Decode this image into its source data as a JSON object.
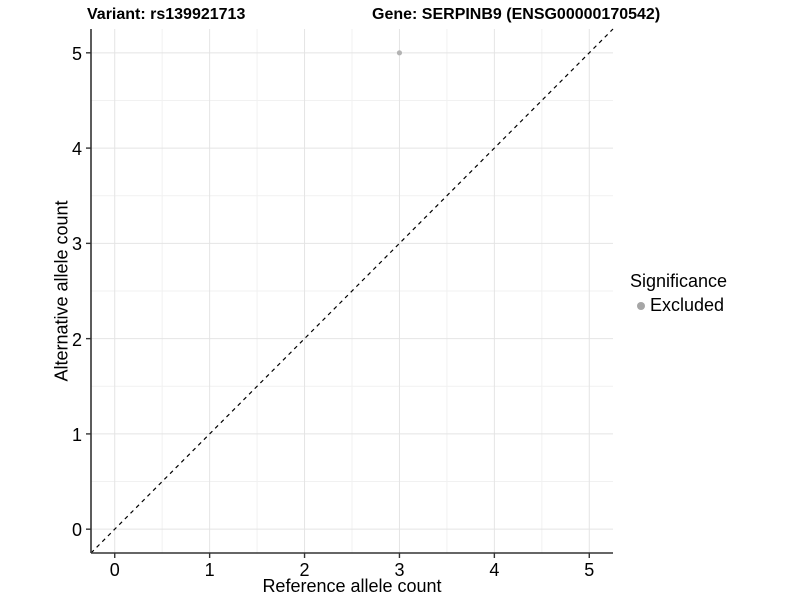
{
  "header": {
    "left_title": "Variant: rs139921713",
    "right_title": "Gene: SERPINB9 (ENSG00000170542)"
  },
  "chart_data": {
    "type": "scatter",
    "title_left": "Variant: rs139921713",
    "title_right": "Gene: SERPINB9 (ENSG00000170542)",
    "xlabel": "Reference allele count",
    "ylabel": "Alternative allele count",
    "xlim": [
      -0.25,
      5.25
    ],
    "ylim": [
      -0.25,
      5.25
    ],
    "x_ticks": [
      0,
      1,
      2,
      3,
      4,
      5
    ],
    "y_ticks": [
      0,
      1,
      2,
      3,
      4,
      5
    ],
    "x_minor_ticks": [
      0.5,
      1.5,
      2.5,
      3.5,
      4.5
    ],
    "y_minor_ticks": [
      0.5,
      1.5,
      2.5,
      3.5,
      4.5
    ],
    "grid": "major-and-minor",
    "series": [
      {
        "name": "Excluded",
        "marker": "circle",
        "color": "#b3b3b3",
        "points": [
          {
            "x": 3,
            "y": 5
          }
        ]
      }
    ],
    "reference_line": {
      "kind": "identity",
      "equation": "y = x",
      "style": "dashed",
      "color": "#000000"
    },
    "legend": {
      "title": "Significance",
      "position": "right",
      "entries": [
        {
          "label": "Excluded",
          "marker": "circle",
          "color": "#a6a6a6"
        }
      ]
    },
    "colors": {
      "background": "#ffffff",
      "grid_major": "#e4e4e4",
      "grid_minor": "#f1f1f1",
      "axis_line": "#333333",
      "tick_mark": "#333333",
      "text": "#000000"
    }
  }
}
